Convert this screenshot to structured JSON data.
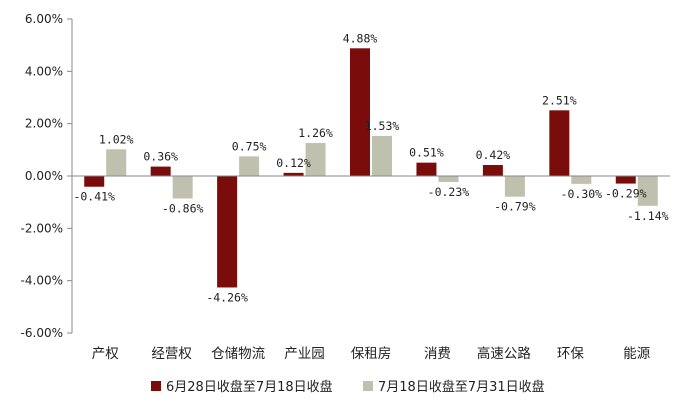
{
  "chart_data": {
    "type": "bar",
    "categories": [
      "产权",
      "经营权",
      "仓储物流",
      "产业园",
      "保租房",
      "消费",
      "高速公路",
      "环保",
      "能源"
    ],
    "series": [
      {
        "name": "6月28日收盘至7月18日收盘",
        "color": "#7b0c0c",
        "values": [
          -0.41,
          0.36,
          -4.26,
          0.12,
          4.88,
          0.51,
          0.42,
          2.51,
          -0.29
        ],
        "labels": [
          "-0.41%",
          "0.36%",
          "-4.26%",
          "0.12%",
          "4.88%",
          "0.51%",
          "0.42%",
          "2.51%",
          "-0.29%"
        ]
      },
      {
        "name": "7月18日收盘至7月31日收盘",
        "color": "#c0c0af",
        "values": [
          1.02,
          -0.86,
          0.75,
          1.26,
          1.53,
          -0.23,
          -0.79,
          -0.3,
          -1.14
        ],
        "labels": [
          "1.02%",
          "-0.86%",
          "0.75%",
          "1.26%",
          "1.53%",
          "-0.23%",
          "-0.79%",
          "-0.30%",
          "-1.14%"
        ]
      }
    ],
    "yticks": [
      "6.00%",
      "4.00%",
      "2.00%",
      "0.00%",
      "-2.00%",
      "-4.00%",
      "-6.00%"
    ],
    "ylim": [
      -6,
      6
    ],
    "legend_position": "bottom",
    "grid": false
  }
}
